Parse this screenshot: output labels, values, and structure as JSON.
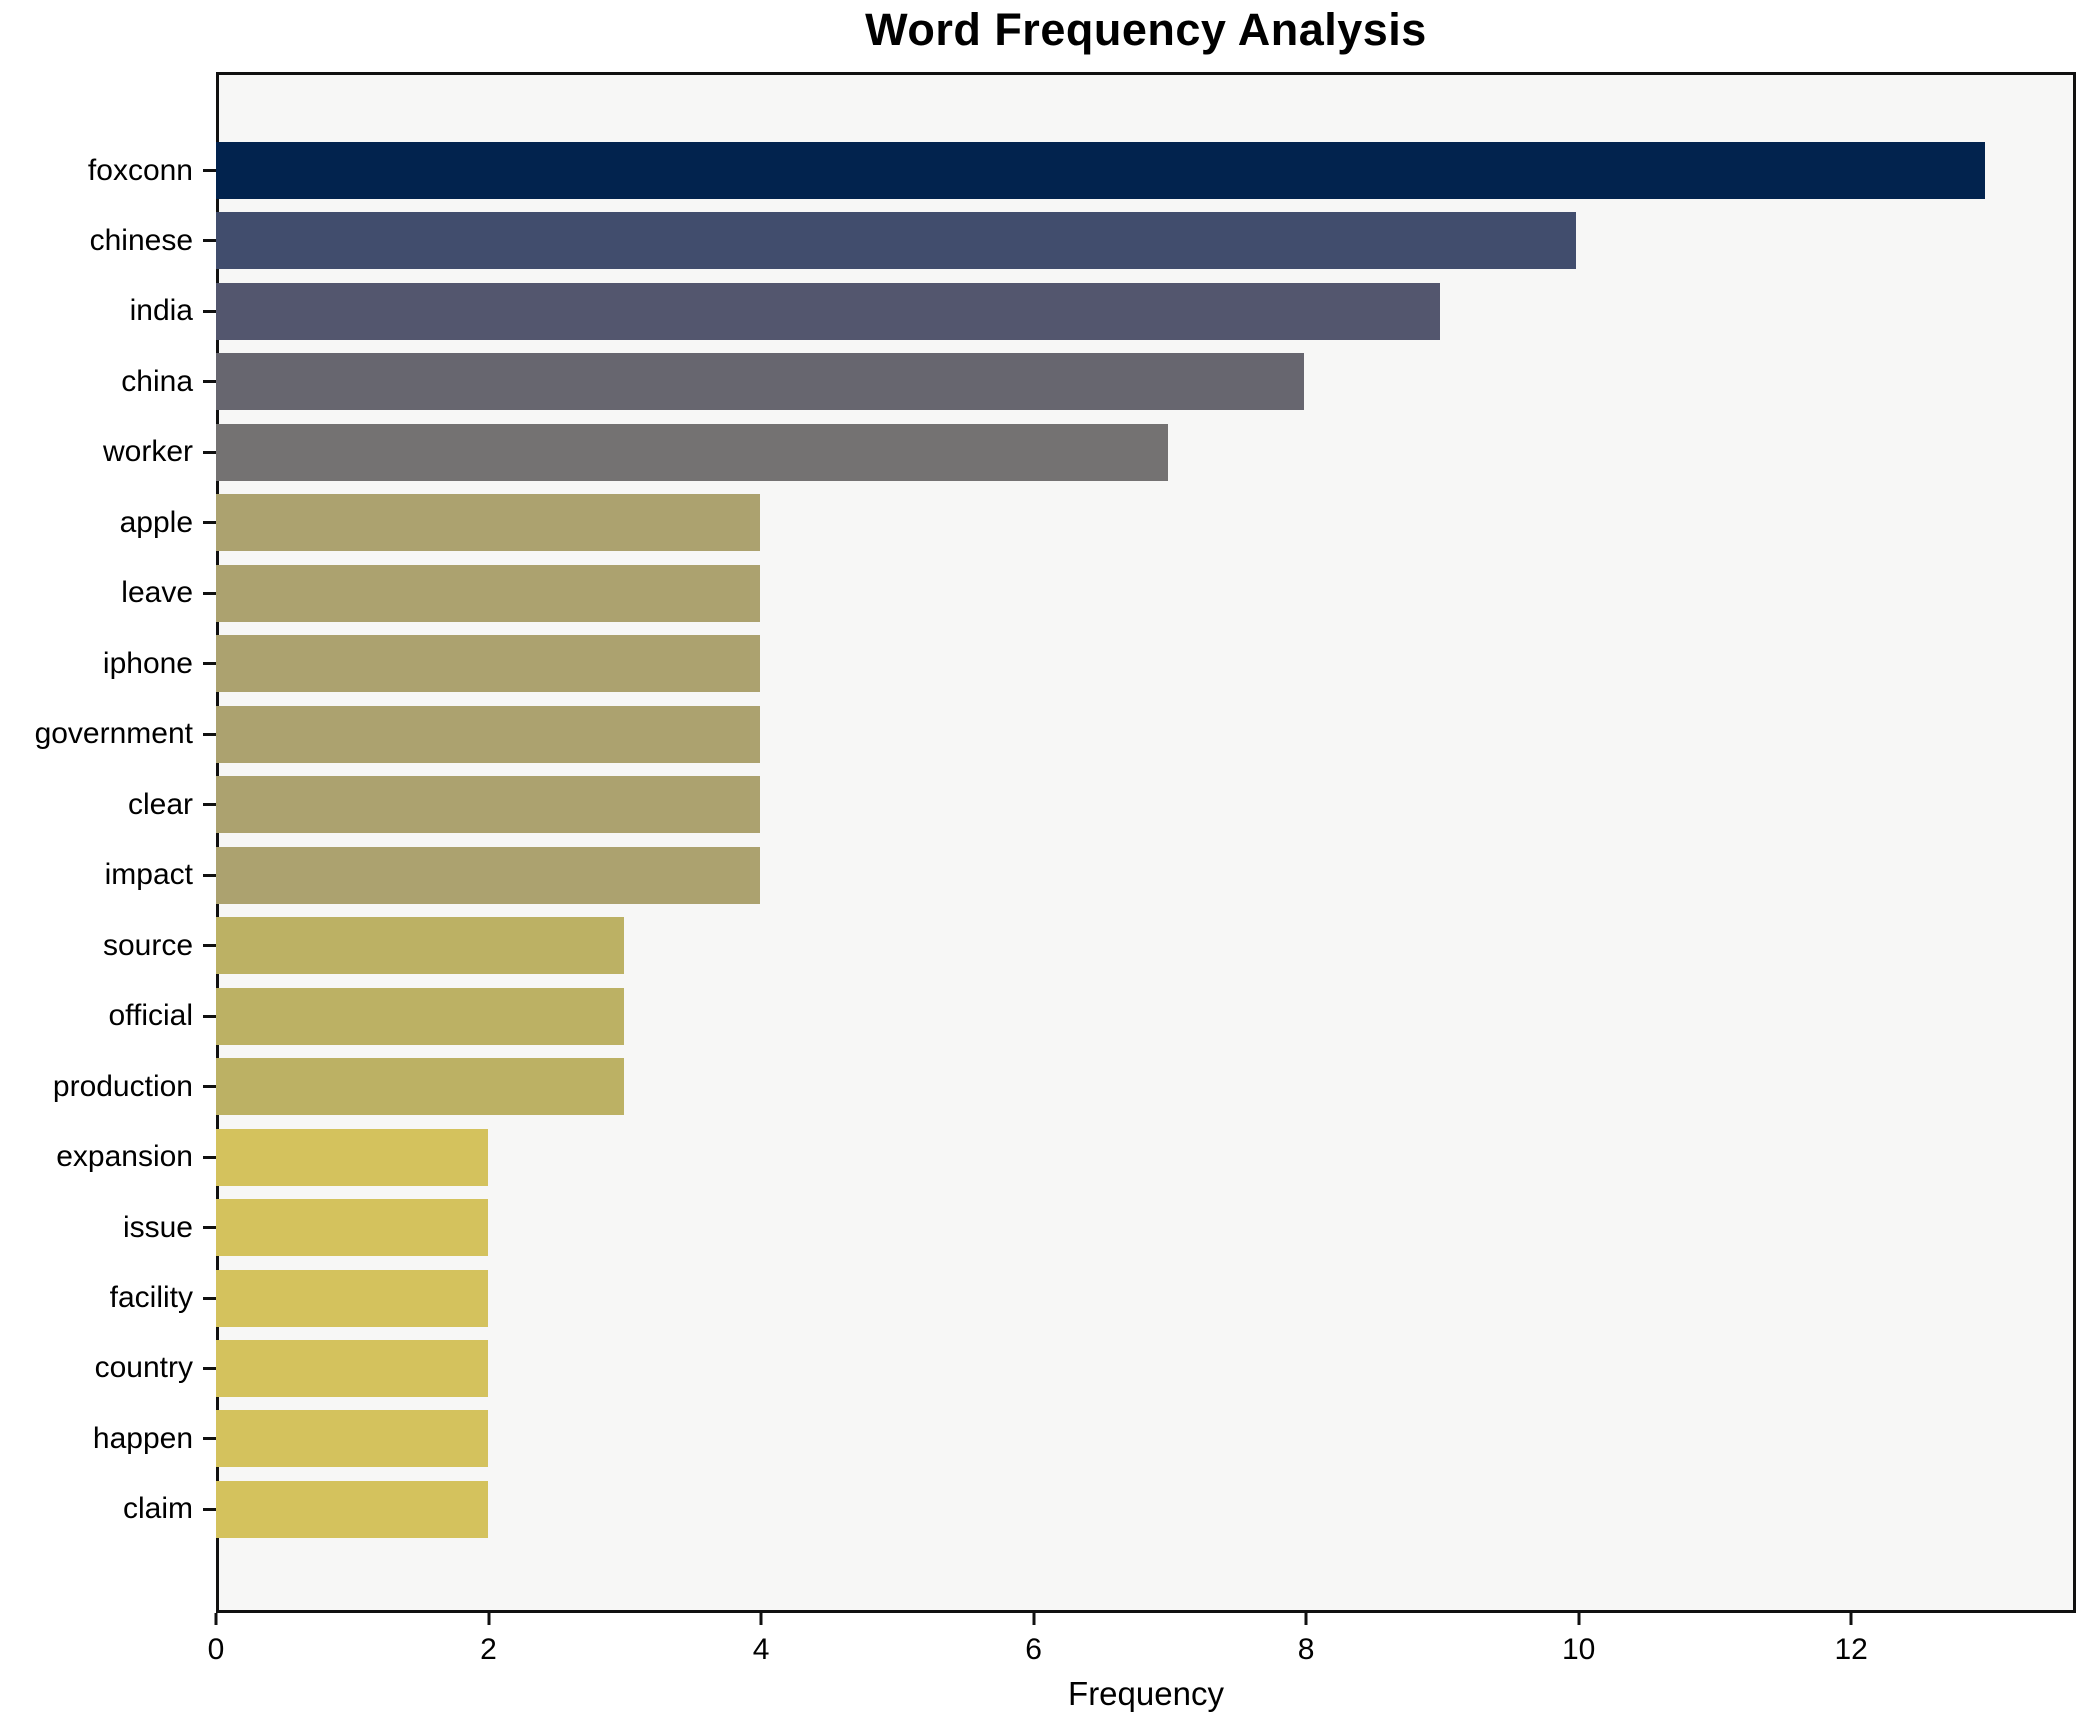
{
  "chart_data": {
    "type": "bar",
    "orientation": "horizontal",
    "title": "Word Frequency Analysis",
    "xlabel": "Frequency",
    "ylabel": "",
    "categories": [
      "foxconn",
      "chinese",
      "india",
      "china",
      "worker",
      "apple",
      "leave",
      "iphone",
      "government",
      "clear",
      "impact",
      "source",
      "official",
      "production",
      "expansion",
      "issue",
      "facility",
      "country",
      "happen",
      "claim"
    ],
    "values": [
      13,
      10,
      9,
      8,
      7,
      4,
      4,
      4,
      4,
      4,
      4,
      3,
      3,
      3,
      2,
      2,
      2,
      2,
      2,
      2
    ],
    "bar_colors": [
      "#02234e",
      "#414d6d",
      "#53566e",
      "#67666f",
      "#747272",
      "#aca26f",
      "#aca26f",
      "#aca26f",
      "#aca26f",
      "#aca26f",
      "#aca26f",
      "#bcb164",
      "#bcb164",
      "#bcb164",
      "#d4c25d",
      "#d4c25d",
      "#d4c25d",
      "#d4c25d",
      "#d4c25d",
      "#d4c25d"
    ],
    "xlim": [
      0,
      13.65
    ],
    "xticks": [
      0,
      2,
      4,
      6,
      8,
      10,
      12
    ],
    "grid": false,
    "legend": "none",
    "plot_background": "#f7f7f6",
    "figure_background": "#ffffff",
    "spine_color": "#101010",
    "text_color": "#000000"
  }
}
